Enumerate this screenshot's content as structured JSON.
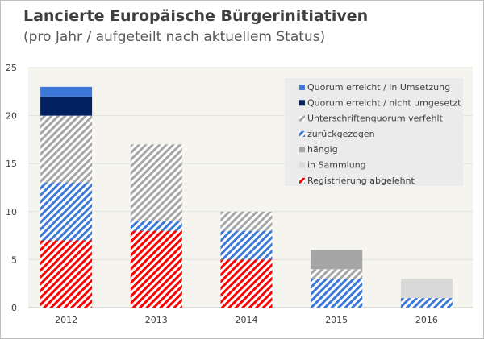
{
  "chart_data": {
    "type": "bar",
    "stacked": true,
    "title": "Lancierte Europäische Bürgerinitiativen",
    "subtitle": "(pro Jahr / aufgeteilt nach aktuellem Status)",
    "xlabel": "",
    "ylabel": "",
    "ylim": [
      0,
      25
    ],
    "yticks": [
      0,
      5,
      10,
      15,
      20,
      25
    ],
    "grid": true,
    "legend_position": "top-right",
    "categories": [
      "2012",
      "2013",
      "2014",
      "2015",
      "2016"
    ],
    "series": [
      {
        "name": "Registrierung abgelehnt",
        "values": [
          7,
          8,
          5,
          0,
          0
        ],
        "color": "#ff0000",
        "hatched": true
      },
      {
        "name": "zurückgezogen",
        "values": [
          6,
          1,
          3,
          3,
          1
        ],
        "color": "#3c78d8",
        "hatched": true
      },
      {
        "name": "Unterschriftenquorum verfehlt",
        "values": [
          7,
          8,
          2,
          1,
          0
        ],
        "color": "#a6a6a6",
        "hatched": true
      },
      {
        "name": "Quorum erreicht / nicht umgesetzt",
        "values": [
          2,
          0,
          0,
          0,
          0
        ],
        "color": "#002060",
        "hatched": false
      },
      {
        "name": "Quorum erreicht / in Umsetzung",
        "values": [
          1,
          0,
          0,
          0,
          0
        ],
        "color": "#3c78d8",
        "hatched": false
      },
      {
        "name": "hängig",
        "values": [
          0,
          0,
          0,
          2,
          0
        ],
        "color": "#a6a6a6",
        "hatched": false
      },
      {
        "name": "in Sammlung",
        "values": [
          0,
          0,
          0,
          0,
          2
        ],
        "color": "#d9d9d9",
        "hatched": false
      }
    ],
    "legend_order": [
      "Quorum erreicht / in Umsetzung",
      "Quorum erreicht / nicht umgesetzt",
      "Unterschriftenquorum verfehlt",
      "zurückgezogen",
      "hängig",
      "in Sammlung",
      "Registrierung abgelehnt"
    ]
  }
}
